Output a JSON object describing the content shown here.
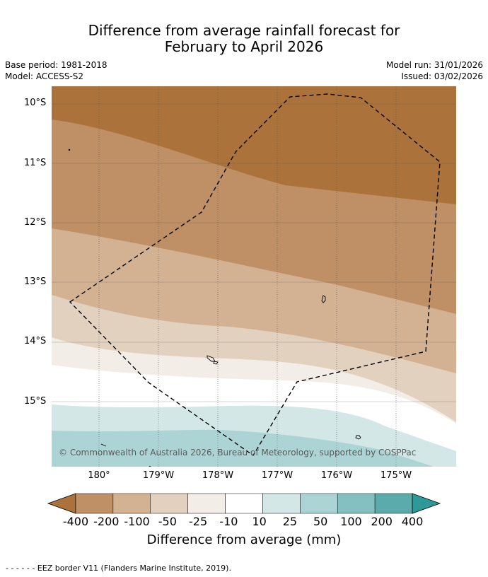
{
  "title_line1": "Difference from average rainfall forecast for",
  "title_line2": "February to April 2026",
  "base_period": "Base period: 1981-2018",
  "model": "Model: ACCESS-S2",
  "model_run": "Model run: 31/01/2026",
  "issued": "Issued: 03/02/2026",
  "lat_labels": [
    "10°S",
    "11°S",
    "12°S",
    "13°S",
    "14°S",
    "15°S"
  ],
  "lon_labels": [
    "180°",
    "179°W",
    "178°W",
    "177°W",
    "176°W",
    "175°W"
  ],
  "credit": "© Commonwealth of Australia 2026, Bureau of Meteorology, supported by COSPPac",
  "colorbar": {
    "labels": [
      "-400",
      "-200",
      "-100",
      "-50",
      "-25",
      "-10",
      "10",
      "25",
      "50",
      "100",
      "200",
      "400"
    ],
    "colors": [
      "#ab733b",
      "#bf9065",
      "#d3b294",
      "#e3d1c0",
      "#f2ede7",
      "#ffffff",
      "#d3e7e6",
      "#acd4d4",
      "#85c0c0",
      "#5cabac",
      "#2f9898"
    ],
    "title": "Difference from average (mm)"
  },
  "legend_text": "- -  - -  - - EEZ border V11 (Flanders Marine Institute, 2019)."
}
